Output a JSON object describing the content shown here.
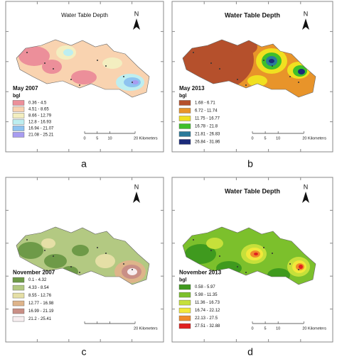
{
  "panels": [
    {
      "caption": "a",
      "title": "Water Table Depth",
      "north": "N",
      "period": "May 2007",
      "unit": "bgl",
      "legend": [
        {
          "label": "0.36 - 4.5",
          "color": "#ec8f9a"
        },
        {
          "label": "4.51 - 8.65",
          "color": "#f9d3b0"
        },
        {
          "label": "8.66 - 12.79",
          "color": "#f3eec0"
        },
        {
          "label": "12.8 - 16.93",
          "color": "#bdeef0"
        },
        {
          "label": "16.94 - 21.07",
          "color": "#8ec3f0"
        },
        {
          "label": "21.08 - 25.21",
          "color": "#a89cf0"
        }
      ],
      "scale": [
        "0",
        "5",
        "10",
        "20 Kilometers"
      ]
    },
    {
      "caption": "b",
      "title": "Water Table Depth",
      "north": "N",
      "period": "May 2013",
      "unit": "bgl",
      "legend": [
        {
          "label": "1.68 - 6.71",
          "color": "#b5502c"
        },
        {
          "label": "6.72 - 11.74",
          "color": "#e8942a"
        },
        {
          "label": "11.75 - 16.77",
          "color": "#f0e020"
        },
        {
          "label": "16.78 - 21.8",
          "color": "#3fbf2a"
        },
        {
          "label": "21.81 - 26.83",
          "color": "#2a7a9a"
        },
        {
          "label": "26.84 - 31.86",
          "color": "#1a2a7a"
        }
      ],
      "scale": [
        "0",
        "5",
        "10",
        "20 Kilometers"
      ]
    },
    {
      "caption": "c",
      "north": "N",
      "period": "November 2007",
      "legend": [
        {
          "label": "0.1 - 4.32",
          "color": "#6e9a48"
        },
        {
          "label": "4.33 - 8.54",
          "color": "#b3c982"
        },
        {
          "label": "8.55 - 12.76",
          "color": "#e5dfa6"
        },
        {
          "label": "12.77 - 16.98",
          "color": "#deb48a"
        },
        {
          "label": "16.99 - 21.19",
          "color": "#c98f86"
        },
        {
          "label": "21.2 - 25.41",
          "color": "#f7eef0"
        }
      ],
      "scale": [
        "20 Kilometers"
      ]
    },
    {
      "caption": "d",
      "title": "Water Table Depth",
      "north": "N",
      "period": "November 2013",
      "unit": "bgl",
      "legend": [
        {
          "label": "0.58 - 5.97",
          "color": "#3f9a1e"
        },
        {
          "label": "5.98 - 11.35",
          "color": "#7cc02c"
        },
        {
          "label": "11.36 - 16.73",
          "color": "#c6e03a"
        },
        {
          "label": "16.74 - 22.12",
          "color": "#f2e83a"
        },
        {
          "label": "22.13 - 27.5",
          "color": "#f08a2a"
        },
        {
          "label": "27.51 - 32.88",
          "color": "#e02020"
        }
      ],
      "scale": [
        "0",
        "5",
        "10",
        "20 Kilometers"
      ]
    }
  ]
}
